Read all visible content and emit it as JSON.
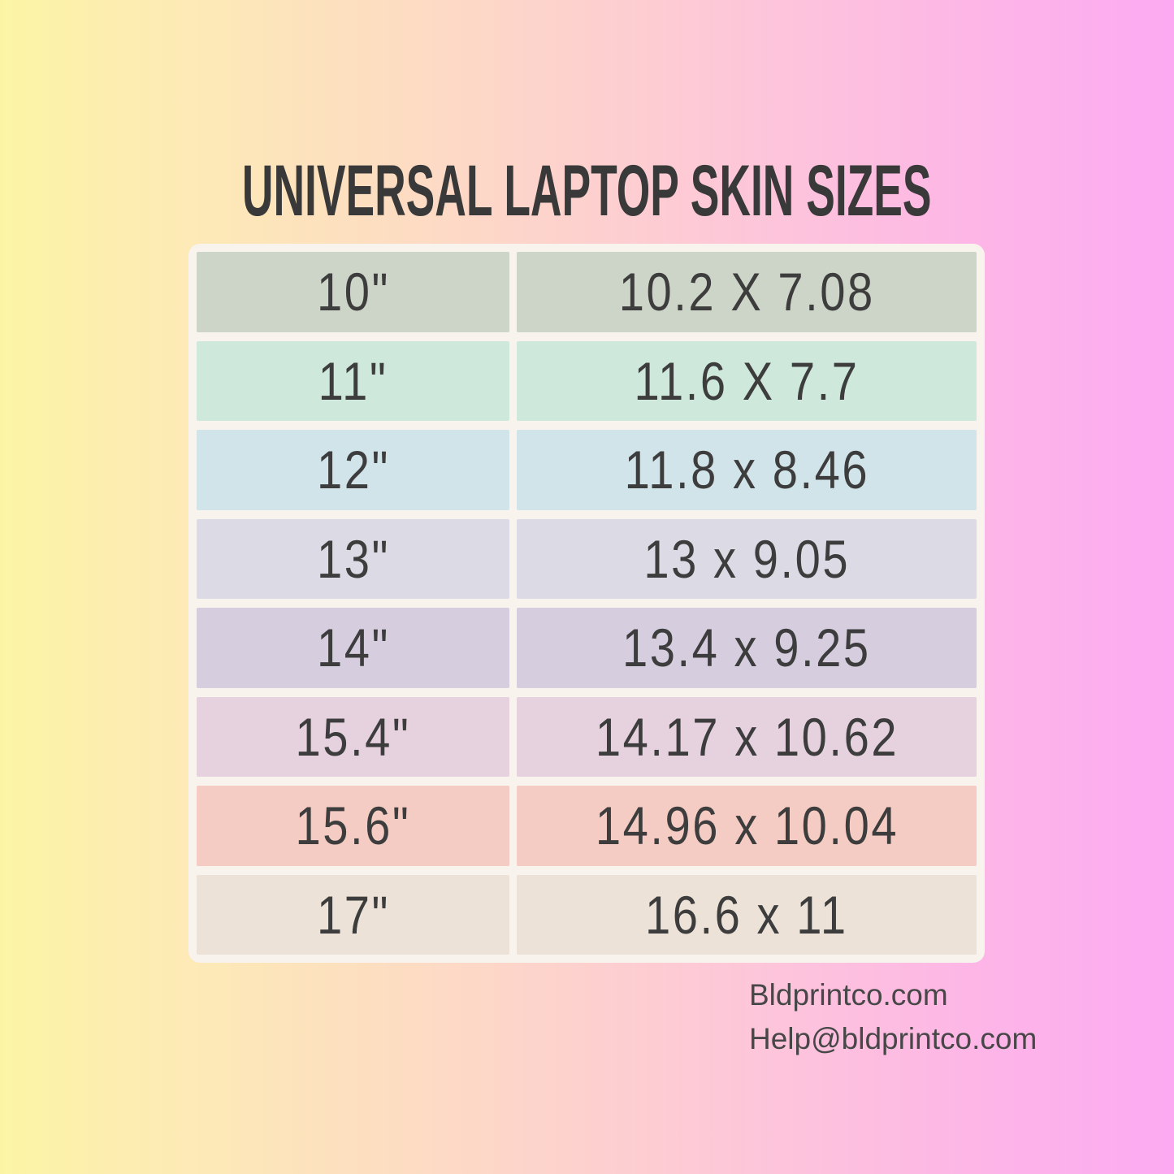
{
  "title": "UNIVERSAL LAPTOP SKIN SIZES",
  "table": {
    "rows": [
      {
        "size": "10\"",
        "dimensions": "10.2 X 7.08",
        "color": "#cdd5c8"
      },
      {
        "size": "11\"",
        "dimensions": "11.6 X 7.7",
        "color": "#cfe8dc"
      },
      {
        "size": "12\"",
        "dimensions": "11.8 x 8.46",
        "color": "#d0e4e9"
      },
      {
        "size": "13\"",
        "dimensions": "13 x 9.05",
        "color": "#dcdae4"
      },
      {
        "size": "14\"",
        "dimensions": "13.4 x 9.25",
        "color": "#d6cdde"
      },
      {
        "size": "15.4\"",
        "dimensions": "14.17 x 10.62",
        "color": "#e6d1df"
      },
      {
        "size": "15.6\"",
        "dimensions": "14.96 x 10.04",
        "color": "#f5ccc4"
      },
      {
        "size": "17\"",
        "dimensions": "16.6 x 11",
        "color": "#ece2d7"
      }
    ]
  },
  "footer": {
    "website": "Bldprintco.com",
    "email": "Help@bldprintco.com"
  },
  "colors": {
    "gradient_left": "#fcf4a5",
    "gradient_right": "#fcaaf2",
    "table_frame": "#f8f3ec",
    "title_text": "#393939",
    "cell_text": "#3d3d3d",
    "footer_text": "#474747"
  },
  "chart_data": {
    "type": "table",
    "title": "UNIVERSAL LAPTOP SKIN SIZES",
    "rows": [
      [
        "10\"",
        "10.2 X 7.08"
      ],
      [
        "11\"",
        "11.6 X 7.7"
      ],
      [
        "12\"",
        "11.8 x 8.46"
      ],
      [
        "13\"",
        "13 x 9.05"
      ],
      [
        "14\"",
        "13.4 x 9.25"
      ],
      [
        "15.4\"",
        "14.17 x 10.62"
      ],
      [
        "15.6\"",
        "14.96 x 10.04"
      ],
      [
        "17\"",
        "16.6 x 11"
      ]
    ]
  }
}
